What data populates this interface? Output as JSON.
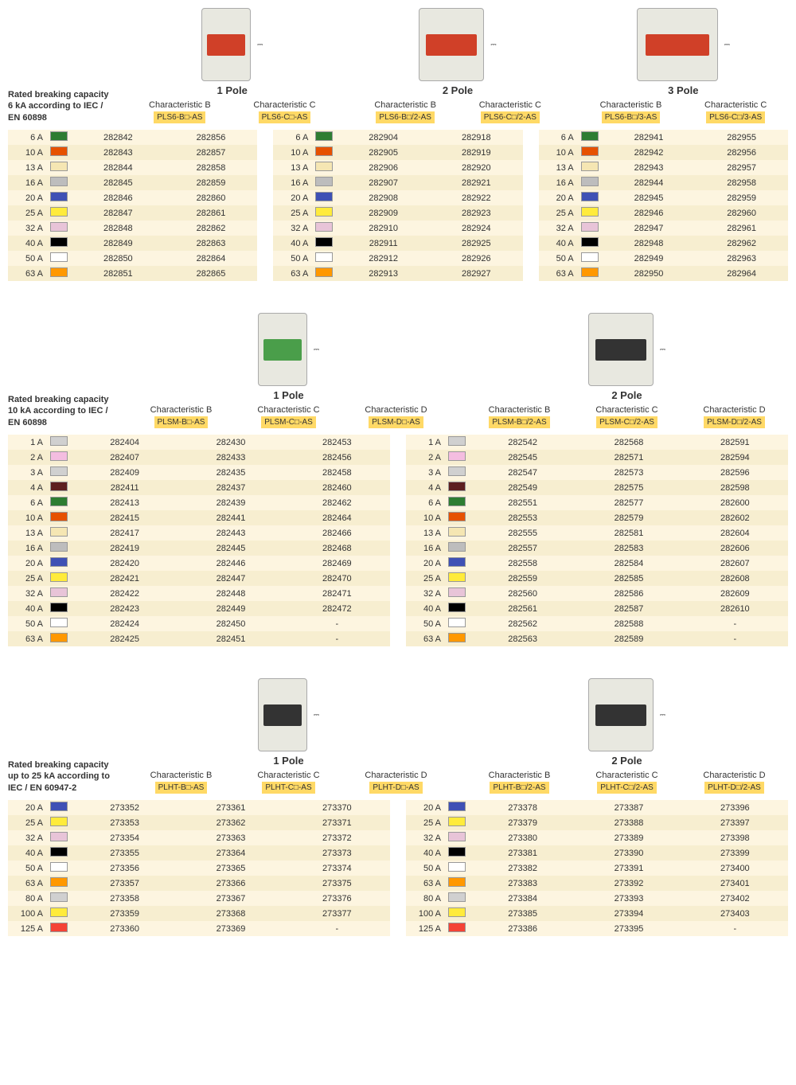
{
  "colors": {
    "6A": "#2e7d32",
    "10A": "#e65100",
    "13A": "#f5e6b3",
    "16A": "#bdbdbd",
    "20A": "#3f51b5",
    "25A": "#ffeb3b",
    "32A": "#e8c4d8",
    "40A": "#000000",
    "50A": "#ffffff",
    "63A": "#ff9800",
    "1A": "#d0d0d0",
    "2A": "#f4bde0",
    "3A": "#d0d0d0",
    "4A": "#5d1f1f",
    "80A": "#d0d0d0",
    "100A": "#ffeb3b",
    "125A": "#f44336"
  },
  "sections": [
    {
      "desc": "Rated breaking capacity 6 kA according to IEC / EN 60898",
      "groups": [
        {
          "poleTitle": "1 Pole",
          "poleClass": "",
          "chars": [
            "Characteristic B",
            "Characteristic C"
          ],
          "models": [
            "PLS6-B□-AS",
            "PLS6-C□-AS"
          ]
        },
        {
          "poleTitle": "2 Pole",
          "poleClass": "p2",
          "chars": [
            "Characteristic B",
            "Characteristic C"
          ],
          "models": [
            "PLS6-B□/2-AS",
            "PLS6-C□/2-AS"
          ]
        },
        {
          "poleTitle": "3 Pole",
          "poleClass": "p3",
          "chars": [
            "Characteristic B",
            "Characteristic C"
          ],
          "models": [
            "PLS6-B□/3-AS",
            "PLS6-C□/3-AS"
          ]
        }
      ],
      "amps": [
        "6 A",
        "10 A",
        "13 A",
        "16 A",
        "20 A",
        "25 A",
        "32 A",
        "40 A",
        "50 A",
        "63 A"
      ],
      "ampKeys": [
        "6A",
        "10A",
        "13A",
        "16A",
        "20A",
        "25A",
        "32A",
        "40A",
        "50A",
        "63A"
      ],
      "data": [
        [
          [
            "282842",
            "282856"
          ],
          [
            "282843",
            "282857"
          ],
          [
            "282844",
            "282858"
          ],
          [
            "282845",
            "282859"
          ],
          [
            "282846",
            "282860"
          ],
          [
            "282847",
            "282861"
          ],
          [
            "282848",
            "282862"
          ],
          [
            "282849",
            "282863"
          ],
          [
            "282850",
            "282864"
          ],
          [
            "282851",
            "282865"
          ]
        ],
        [
          [
            "282904",
            "282918"
          ],
          [
            "282905",
            "282919"
          ],
          [
            "282906",
            "282920"
          ],
          [
            "282907",
            "282921"
          ],
          [
            "282908",
            "282922"
          ],
          [
            "282909",
            "282923"
          ],
          [
            "282910",
            "282924"
          ],
          [
            "282911",
            "282925"
          ],
          [
            "282912",
            "282926"
          ],
          [
            "282913",
            "282927"
          ]
        ],
        [
          [
            "282941",
            "282955"
          ],
          [
            "282942",
            "282956"
          ],
          [
            "282943",
            "282957"
          ],
          [
            "282944",
            "282958"
          ],
          [
            "282945",
            "282959"
          ],
          [
            "282946",
            "282960"
          ],
          [
            "282947",
            "282961"
          ],
          [
            "282948",
            "282962"
          ],
          [
            "282949",
            "282963"
          ],
          [
            "282950",
            "282964"
          ]
        ]
      ]
    },
    {
      "desc": "Rated breaking capacity 10 kA according to IEC / EN 60898",
      "imgClass": "green",
      "groups": [
        {
          "poleTitle": "1 Pole",
          "poleClass": "",
          "chars": [
            "Characteristic B",
            "Characteristic C",
            "Characteristic D"
          ],
          "models": [
            "PLSM-B□-AS",
            "PLSM-C□-AS",
            "PLSM-D□-AS"
          ]
        },
        {
          "poleTitle": "2 Pole",
          "poleClass": "p2 black",
          "chars": [
            "Characteristic B",
            "Characteristic C",
            "Characteristic D"
          ],
          "models": [
            "PLSM-B□/2-AS",
            "PLSM-C□/2-AS",
            "PLSM-D□/2-AS"
          ]
        }
      ],
      "amps": [
        "1 A",
        "2 A",
        "3 A",
        "4 A",
        "6 A",
        "10 A",
        "13 A",
        "16 A",
        "20 A",
        "25 A",
        "32 A",
        "40 A",
        "50 A",
        "63 A"
      ],
      "ampKeys": [
        "1A",
        "2A",
        "3A",
        "4A",
        "6A",
        "10A",
        "13A",
        "16A",
        "20A",
        "25A",
        "32A",
        "40A",
        "50A",
        "63A"
      ],
      "data": [
        [
          [
            "282404",
            "282430",
            "282453"
          ],
          [
            "282407",
            "282433",
            "282456"
          ],
          [
            "282409",
            "282435",
            "282458"
          ],
          [
            "282411",
            "282437",
            "282460"
          ],
          [
            "282413",
            "282439",
            "282462"
          ],
          [
            "282415",
            "282441",
            "282464"
          ],
          [
            "282417",
            "282443",
            "282466"
          ],
          [
            "282419",
            "282445",
            "282468"
          ],
          [
            "282420",
            "282446",
            "282469"
          ],
          [
            "282421",
            "282447",
            "282470"
          ],
          [
            "282422",
            "282448",
            "282471"
          ],
          [
            "282423",
            "282449",
            "282472"
          ],
          [
            "282424",
            "282450",
            "-"
          ],
          [
            "282425",
            "282451",
            "-"
          ]
        ],
        [
          [
            "282542",
            "282568",
            "282591"
          ],
          [
            "282545",
            "282571",
            "282594"
          ],
          [
            "282547",
            "282573",
            "282596"
          ],
          [
            "282549",
            "282575",
            "282598"
          ],
          [
            "282551",
            "282577",
            "282600"
          ],
          [
            "282553",
            "282579",
            "282602"
          ],
          [
            "282555",
            "282581",
            "282604"
          ],
          [
            "282557",
            "282583",
            "282606"
          ],
          [
            "282558",
            "282584",
            "282607"
          ],
          [
            "282559",
            "282585",
            "282608"
          ],
          [
            "282560",
            "282586",
            "282609"
          ],
          [
            "282561",
            "282587",
            "282610"
          ],
          [
            "282562",
            "282588",
            "-"
          ],
          [
            "282563",
            "282589",
            "-"
          ]
        ]
      ]
    },
    {
      "desc": "Rated breaking capacity up to 25 kA according to IEC / EN 60947-2",
      "imgClass": "black",
      "groups": [
        {
          "poleTitle": "1 Pole",
          "poleClass": "",
          "chars": [
            "Characteristic B",
            "Characteristic C",
            "Characteristic D"
          ],
          "models": [
            "PLHT-B□-AS",
            "PLHT-C□-AS",
            "PLHT-D□-AS"
          ]
        },
        {
          "poleTitle": "2 Pole",
          "poleClass": "p2",
          "chars": [
            "Characteristic B",
            "Characteristic C",
            "Characteristic D"
          ],
          "models": [
            "PLHT-B□/2-AS",
            "PLHT-C□/2-AS",
            "PLHT-D□/2-AS"
          ]
        }
      ],
      "amps": [
        "20 A",
        "25 A",
        "32 A",
        "40 A",
        "50 A",
        "63 A",
        "80 A",
        "100 A",
        "125 A"
      ],
      "ampKeys": [
        "20A",
        "25A",
        "32A",
        "40A",
        "50A",
        "63A",
        "80A",
        "100A",
        "125A"
      ],
      "data": [
        [
          [
            "273352",
            "273361",
            "273370"
          ],
          [
            "273353",
            "273362",
            "273371"
          ],
          [
            "273354",
            "273363",
            "273372"
          ],
          [
            "273355",
            "273364",
            "273373"
          ],
          [
            "273356",
            "273365",
            "273374"
          ],
          [
            "273357",
            "273366",
            "273375"
          ],
          [
            "273358",
            "273367",
            "273376"
          ],
          [
            "273359",
            "273368",
            "273377"
          ],
          [
            "273360",
            "273369",
            "-"
          ]
        ],
        [
          [
            "273378",
            "273387",
            "273396"
          ],
          [
            "273379",
            "273388",
            "273397"
          ],
          [
            "273380",
            "273389",
            "273398"
          ],
          [
            "273381",
            "273390",
            "273399"
          ],
          [
            "273382",
            "273391",
            "273400"
          ],
          [
            "273383",
            "273392",
            "273401"
          ],
          [
            "273384",
            "273393",
            "273402"
          ],
          [
            "273385",
            "273394",
            "273403"
          ],
          [
            "273386",
            "273395",
            "-"
          ]
        ]
      ]
    }
  ]
}
